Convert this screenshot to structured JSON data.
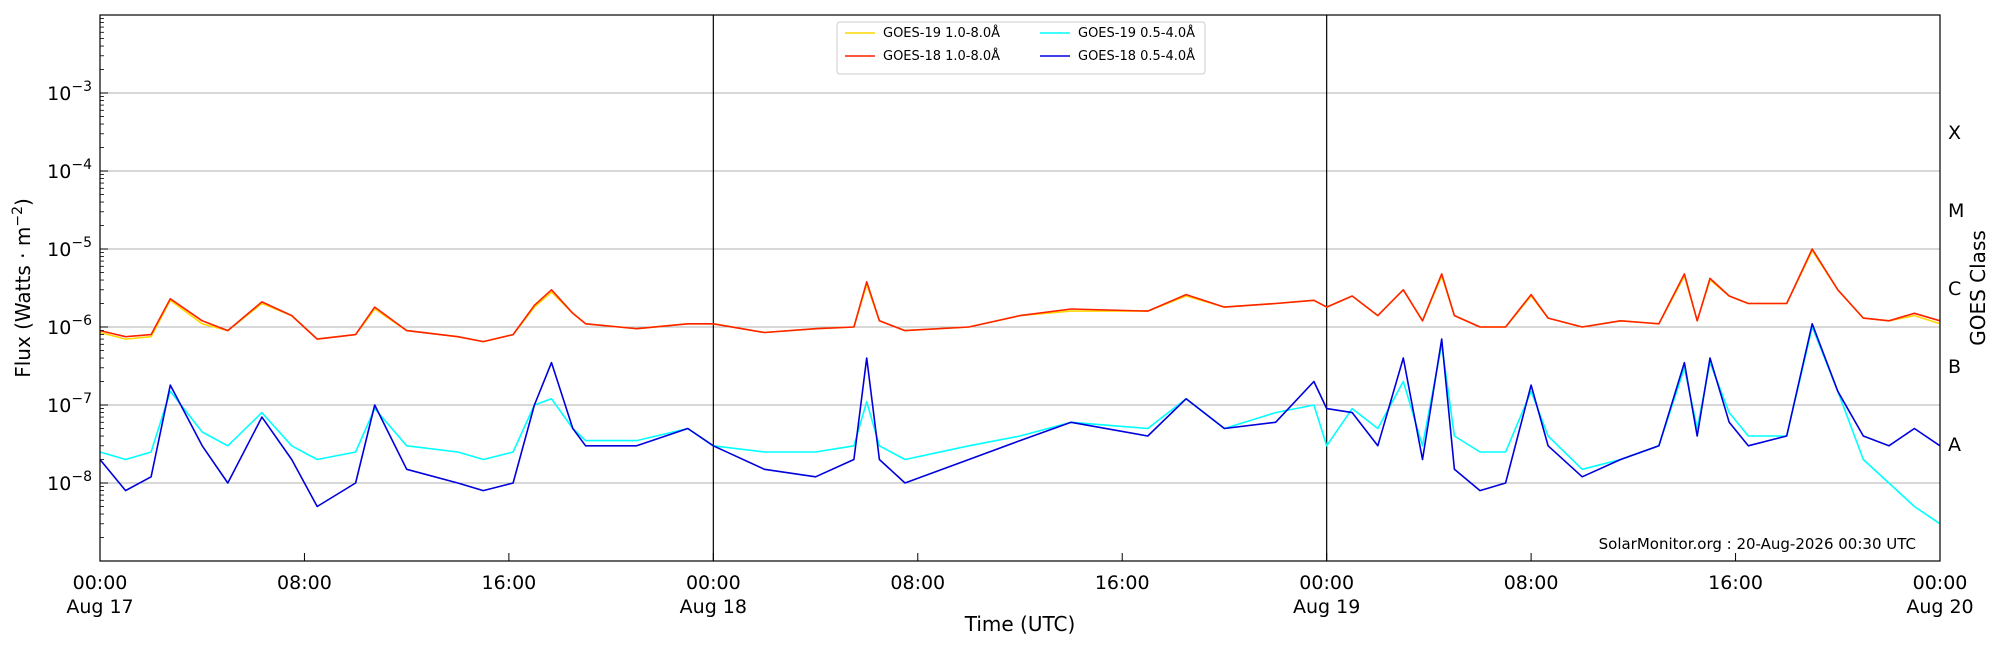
{
  "chart_data": {
    "type": "line",
    "xlabel": "Time (UTC)",
    "ylabel": "Flux (Watts · m⁻²)",
    "y2label": "GOES Class",
    "yscale": "log",
    "xlim": [
      "2026-08-17 00:00",
      "2026-08-20 00:00"
    ],
    "ylim": [
      1e-09,
      0.01
    ],
    "grid": "horizontal",
    "legend_position": "top-center",
    "credit": "SolarMonitor.org : 20-Aug-2026 00:30 UTC",
    "x_ticks": [
      {
        "time": "2026-08-17 00:00",
        "line1": "00:00",
        "line2": "Aug 17"
      },
      {
        "time": "2026-08-17 08:00",
        "line1": "08:00",
        "line2": ""
      },
      {
        "time": "2026-08-17 16:00",
        "line1": "16:00",
        "line2": ""
      },
      {
        "time": "2026-08-18 00:00",
        "line1": "00:00",
        "line2": "Aug 18"
      },
      {
        "time": "2026-08-18 08:00",
        "line1": "08:00",
        "line2": ""
      },
      {
        "time": "2026-08-18 16:00",
        "line1": "16:00",
        "line2": ""
      },
      {
        "time": "2026-08-19 00:00",
        "line1": "00:00",
        "line2": "Aug 19"
      },
      {
        "time": "2026-08-19 08:00",
        "line1": "08:00",
        "line2": ""
      },
      {
        "time": "2026-08-19 16:00",
        "line1": "16:00",
        "line2": ""
      },
      {
        "time": "2026-08-20 00:00",
        "line1": "00:00",
        "line2": "Aug 20"
      }
    ],
    "y_ticks": [
      {
        "value": 1e-08,
        "mantissa": "10",
        "exponent": "−8"
      },
      {
        "value": 1e-07,
        "mantissa": "10",
        "exponent": "−7"
      },
      {
        "value": 1e-06,
        "mantissa": "10",
        "exponent": "−6"
      },
      {
        "value": 1e-05,
        "mantissa": "10",
        "exponent": "−5"
      },
      {
        "value": 0.0001,
        "mantissa": "10",
        "exponent": "−4"
      },
      {
        "value": 0.001,
        "mantissa": "10",
        "exponent": "−3"
      }
    ],
    "day_boundaries": [
      "2026-08-18 00:00",
      "2026-08-19 00:00"
    ],
    "goes_classes": [
      {
        "label": "A",
        "value": 3.16e-08
      },
      {
        "label": "B",
        "value": 3.16e-07
      },
      {
        "label": "C",
        "value": 3.16e-06
      },
      {
        "label": "M",
        "value": 3.16e-05
      },
      {
        "label": "X",
        "value": 0.000316
      }
    ],
    "series": [
      {
        "name": "GOES-19 1.0-8.0Å",
        "color": "#ffd700",
        "x": [
          "2026-08-17 00:00",
          "2026-08-17 01:00",
          "2026-08-17 02:00",
          "2026-08-17 02:45",
          "2026-08-17 04:00",
          "2026-08-17 05:00",
          "2026-08-17 06:20",
          "2026-08-17 07:30",
          "2026-08-17 08:30",
          "2026-08-17 10:00",
          "2026-08-17 10:45",
          "2026-08-17 12:00",
          "2026-08-17 14:00",
          "2026-08-17 15:00",
          "2026-08-17 16:10",
          "2026-08-17 17:00",
          "2026-08-17 17:40",
          "2026-08-17 18:30",
          "2026-08-17 19:00",
          "2026-08-17 21:00",
          "2026-08-17 23:00",
          "2026-08-18 00:00",
          "2026-08-18 02:00",
          "2026-08-18 04:00",
          "2026-08-18 05:30",
          "2026-08-18 06:00",
          "2026-08-18 06:30",
          "2026-08-18 07:30",
          "2026-08-18 10:00",
          "2026-08-18 12:00",
          "2026-08-18 14:00",
          "2026-08-18 17:00",
          "2026-08-18 18:30",
          "2026-08-18 20:00",
          "2026-08-18 22:00",
          "2026-08-18 23:30",
          "2026-08-19 00:00",
          "2026-08-19 01:00",
          "2026-08-19 02:00",
          "2026-08-19 03:00",
          "2026-08-19 03:45",
          "2026-08-19 04:30",
          "2026-08-19 05:00",
          "2026-08-19 06:00",
          "2026-08-19 07:00",
          "2026-08-19 08:00",
          "2026-08-19 08:40",
          "2026-08-19 10:00",
          "2026-08-19 11:30",
          "2026-08-19 13:00",
          "2026-08-19 14:00",
          "2026-08-19 14:30",
          "2026-08-19 15:00",
          "2026-08-19 15:45",
          "2026-08-19 16:30",
          "2026-08-19 18:00",
          "2026-08-19 19:00",
          "2026-08-19 20:00",
          "2026-08-19 21:00",
          "2026-08-19 22:00",
          "2026-08-19 23:00",
          "2026-08-20 00:00"
        ],
        "y": [
          8.5e-07,
          7e-07,
          7.5e-07,
          2.2e-06,
          1.1e-06,
          9e-07,
          2e-06,
          1.4e-06,
          7e-07,
          8e-07,
          1.7e-06,
          9e-07,
          7.5e-07,
          6.5e-07,
          8e-07,
          1.8e-06,
          2.8e-06,
          1.5e-06,
          1.1e-06,
          9.5e-07,
          1.1e-06,
          1.1e-06,
          8.5e-07,
          9.5e-07,
          1e-06,
          3.5e-06,
          1.2e-06,
          9e-07,
          1e-06,
          1.4e-06,
          1.6e-06,
          1.6e-06,
          2.5e-06,
          1.8e-06,
          2e-06,
          2.2e-06,
          1.8e-06,
          2.5e-06,
          1.4e-06,
          3e-06,
          1.2e-06,
          4.5e-06,
          1.4e-06,
          1e-06,
          1e-06,
          2.5e-06,
          1.3e-06,
          1e-06,
          1.2e-06,
          1.1e-06,
          4.5e-06,
          1.2e-06,
          4e-06,
          2.5e-06,
          2e-06,
          2e-06,
          9.5e-06,
          3e-06,
          1.3e-06,
          1.2e-06,
          1.4e-06,
          1.1e-06
        ]
      },
      {
        "name": "GOES-18 1.0-8.0Å",
        "color": "#ff2200",
        "x": [
          "2026-08-17 00:00",
          "2026-08-17 01:00",
          "2026-08-17 02:00",
          "2026-08-17 02:45",
          "2026-08-17 04:00",
          "2026-08-17 05:00",
          "2026-08-17 06:20",
          "2026-08-17 07:30",
          "2026-08-17 08:30",
          "2026-08-17 10:00",
          "2026-08-17 10:45",
          "2026-08-17 12:00",
          "2026-08-17 14:00",
          "2026-08-17 15:00",
          "2026-08-17 16:10",
          "2026-08-17 17:00",
          "2026-08-17 17:40",
          "2026-08-17 18:30",
          "2026-08-17 19:00",
          "2026-08-17 21:00",
          "2026-08-17 23:00",
          "2026-08-18 00:00",
          "2026-08-18 02:00",
          "2026-08-18 04:00",
          "2026-08-18 05:30",
          "2026-08-18 06:00",
          "2026-08-18 06:30",
          "2026-08-18 07:30",
          "2026-08-18 10:00",
          "2026-08-18 12:00",
          "2026-08-18 14:00",
          "2026-08-18 17:00",
          "2026-08-18 18:30",
          "2026-08-18 20:00",
          "2026-08-18 22:00",
          "2026-08-18 23:30",
          "2026-08-19 00:00",
          "2026-08-19 01:00",
          "2026-08-19 02:00",
          "2026-08-19 03:00",
          "2026-08-19 03:45",
          "2026-08-19 04:30",
          "2026-08-19 05:00",
          "2026-08-19 06:00",
          "2026-08-19 07:00",
          "2026-08-19 08:00",
          "2026-08-19 08:40",
          "2026-08-19 10:00",
          "2026-08-19 11:30",
          "2026-08-19 13:00",
          "2026-08-19 14:00",
          "2026-08-19 14:30",
          "2026-08-19 15:00",
          "2026-08-19 15:45",
          "2026-08-19 16:30",
          "2026-08-19 18:00",
          "2026-08-19 19:00",
          "2026-08-19 20:00",
          "2026-08-19 21:00",
          "2026-08-19 22:00",
          "2026-08-19 23:00",
          "2026-08-20 00:00"
        ],
        "y": [
          9e-07,
          7.5e-07,
          8e-07,
          2.3e-06,
          1.2e-06,
          9e-07,
          2.1e-06,
          1.4e-06,
          7e-07,
          8e-07,
          1.8e-06,
          9e-07,
          7.5e-07,
          6.5e-07,
          8e-07,
          1.9e-06,
          3e-06,
          1.5e-06,
          1.1e-06,
          9.5e-07,
          1.1e-06,
          1.1e-06,
          8.5e-07,
          9.5e-07,
          1e-06,
          3.8e-06,
          1.2e-06,
          9e-07,
          1e-06,
          1.4e-06,
          1.7e-06,
          1.6e-06,
          2.6e-06,
          1.8e-06,
          2e-06,
          2.2e-06,
          1.8e-06,
          2.5e-06,
          1.4e-06,
          3e-06,
          1.2e-06,
          4.8e-06,
          1.4e-06,
          1e-06,
          1e-06,
          2.6e-06,
          1.3e-06,
          1e-06,
          1.2e-06,
          1.1e-06,
          4.8e-06,
          1.2e-06,
          4.2e-06,
          2.5e-06,
          2e-06,
          2e-06,
          1e-05,
          3e-06,
          1.3e-06,
          1.2e-06,
          1.5e-06,
          1.2e-06
        ]
      },
      {
        "name": "GOES-19 0.5-4.0Å",
        "color": "#00ffff",
        "x": [
          "2026-08-17 00:00",
          "2026-08-17 01:00",
          "2026-08-17 02:00",
          "2026-08-17 02:45",
          "2026-08-17 04:00",
          "2026-08-17 05:00",
          "2026-08-17 06:20",
          "2026-08-17 07:30",
          "2026-08-17 08:30",
          "2026-08-17 10:00",
          "2026-08-17 10:45",
          "2026-08-17 12:00",
          "2026-08-17 14:00",
          "2026-08-17 15:00",
          "2026-08-17 16:10",
          "2026-08-17 17:00",
          "2026-08-17 17:40",
          "2026-08-17 18:30",
          "2026-08-17 19:00",
          "2026-08-17 21:00",
          "2026-08-17 23:00",
          "2026-08-18 00:00",
          "2026-08-18 02:00",
          "2026-08-18 04:00",
          "2026-08-18 05:30",
          "2026-08-18 06:00",
          "2026-08-18 06:30",
          "2026-08-18 07:30",
          "2026-08-18 10:00",
          "2026-08-18 12:00",
          "2026-08-18 14:00",
          "2026-08-18 17:00",
          "2026-08-18 18:30",
          "2026-08-18 20:00",
          "2026-08-18 22:00",
          "2026-08-18 23:30",
          "2026-08-19 00:00",
          "2026-08-19 01:00",
          "2026-08-19 02:00",
          "2026-08-19 03:00",
          "2026-08-19 03:45",
          "2026-08-19 04:30",
          "2026-08-19 05:00",
          "2026-08-19 06:00",
          "2026-08-19 07:00",
          "2026-08-19 08:00",
          "2026-08-19 08:40",
          "2026-08-19 10:00",
          "2026-08-19 11:30",
          "2026-08-19 13:00",
          "2026-08-19 14:00",
          "2026-08-19 14:30",
          "2026-08-19 15:00",
          "2026-08-19 15:45",
          "2026-08-19 16:30",
          "2026-08-19 18:00",
          "2026-08-19 19:00",
          "2026-08-19 20:00",
          "2026-08-19 21:00",
          "2026-08-19 22:00",
          "2026-08-19 23:00",
          "2026-08-20 00:00"
        ],
        "y": [
          2.5e-08,
          2e-08,
          2.5e-08,
          1.5e-07,
          4.5e-08,
          3e-08,
          8e-08,
          3e-08,
          2e-08,
          2.5e-08,
          9e-08,
          3e-08,
          2.5e-08,
          2e-08,
          2.5e-08,
          1e-07,
          1.2e-07,
          5e-08,
          3.5e-08,
          3.5e-08,
          5e-08,
          3e-08,
          2.5e-08,
          2.5e-08,
          3e-08,
          1.1e-07,
          3e-08,
          2e-08,
          3e-08,
          4e-08,
          6e-08,
          5e-08,
          1.2e-07,
          5e-08,
          8e-08,
          1e-07,
          3e-08,
          9e-08,
          5e-08,
          2e-07,
          3e-08,
          6e-07,
          4e-08,
          2.5e-08,
          2.5e-08,
          1.5e-07,
          4e-08,
          1.5e-08,
          2e-08,
          3e-08,
          3e-07,
          5e-08,
          3.5e-07,
          8e-08,
          4e-08,
          4e-08,
          1e-06,
          1.5e-07,
          2e-08,
          1e-08,
          5e-09,
          3e-09
        ]
      },
      {
        "name": "GOES-18 0.5-4.0Å",
        "color": "#0000dd",
        "x": [
          "2026-08-17 00:00",
          "2026-08-17 01:00",
          "2026-08-17 02:00",
          "2026-08-17 02:45",
          "2026-08-17 04:00",
          "2026-08-17 05:00",
          "2026-08-17 06:20",
          "2026-08-17 07:30",
          "2026-08-17 08:30",
          "2026-08-17 10:00",
          "2026-08-17 10:45",
          "2026-08-17 12:00",
          "2026-08-17 14:00",
          "2026-08-17 15:00",
          "2026-08-17 16:10",
          "2026-08-17 17:00",
          "2026-08-17 17:40",
          "2026-08-17 18:30",
          "2026-08-17 19:00",
          "2026-08-17 21:00",
          "2026-08-17 23:00",
          "2026-08-18 00:00",
          "2026-08-18 02:00",
          "2026-08-18 04:00",
          "2026-08-18 05:30",
          "2026-08-18 06:00",
          "2026-08-18 06:30",
          "2026-08-18 07:30",
          "2026-08-18 10:00",
          "2026-08-18 12:00",
          "2026-08-18 14:00",
          "2026-08-18 17:00",
          "2026-08-18 18:30",
          "2026-08-18 20:00",
          "2026-08-18 22:00",
          "2026-08-18 23:30",
          "2026-08-19 00:00",
          "2026-08-19 01:00",
          "2026-08-19 02:00",
          "2026-08-19 03:00",
          "2026-08-19 03:45",
          "2026-08-19 04:30",
          "2026-08-19 05:00",
          "2026-08-19 06:00",
          "2026-08-19 07:00",
          "2026-08-19 08:00",
          "2026-08-19 08:40",
          "2026-08-19 10:00",
          "2026-08-19 11:30",
          "2026-08-19 13:00",
          "2026-08-19 14:00",
          "2026-08-19 14:30",
          "2026-08-19 15:00",
          "2026-08-19 15:45",
          "2026-08-19 16:30",
          "2026-08-19 18:00",
          "2026-08-19 19:00",
          "2026-08-19 20:00",
          "2026-08-19 21:00",
          "2026-08-19 22:00",
          "2026-08-19 23:00",
          "2026-08-20 00:00"
        ],
        "y": [
          2e-08,
          8e-09,
          1.2e-08,
          1.8e-07,
          3e-08,
          1e-08,
          7e-08,
          2e-08,
          5e-09,
          1e-08,
          1e-07,
          1.5e-08,
          1e-08,
          8e-09,
          1e-08,
          1e-07,
          3.5e-07,
          5e-08,
          3e-08,
          3e-08,
          5e-08,
          3e-08,
          1.5e-08,
          1.2e-08,
          2e-08,
          4e-07,
          2e-08,
          1e-08,
          2e-08,
          3.5e-08,
          6e-08,
          4e-08,
          1.2e-07,
          5e-08,
          6e-08,
          2e-07,
          9e-08,
          8e-08,
          3e-08,
          4e-07,
          2e-08,
          7e-07,
          1.5e-08,
          8e-09,
          1e-08,
          1.8e-07,
          3e-08,
          1.2e-08,
          2e-08,
          3e-08,
          3.5e-07,
          4e-08,
          4e-07,
          6e-08,
          3e-08,
          4e-08,
          1.1e-06,
          1.5e-07,
          4e-08,
          3e-08,
          5e-08,
          3e-08
        ]
      }
    ]
  }
}
